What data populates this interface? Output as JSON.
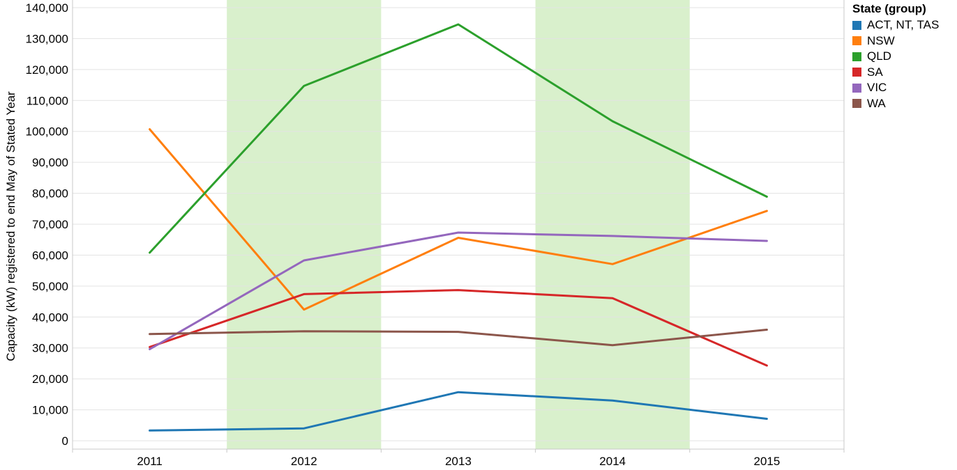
{
  "chart_data": {
    "type": "line",
    "title": "",
    "xlabel": "",
    "ylabel": "Capacity (kW) registered to end May of Stated Year",
    "categories": [
      "2011",
      "2012",
      "2013",
      "2014",
      "2015"
    ],
    "ylim": [
      0,
      140000
    ],
    "yticks": [
      0,
      10000,
      20000,
      30000,
      40000,
      50000,
      60000,
      70000,
      80000,
      90000,
      100000,
      110000,
      120000,
      130000,
      140000
    ],
    "ytick_labels": [
      "0",
      "10,000",
      "20,000",
      "30,000",
      "40,000",
      "50,000",
      "60,000",
      "70,000",
      "80,000",
      "90,000",
      "100,000",
      "110,000",
      "120,000",
      "130,000",
      "140,000"
    ],
    "grid": true,
    "shaded_bands": [
      "2012",
      "2014"
    ],
    "band_color": "#d9f0cc",
    "legend": {
      "title": "State (group)",
      "position": "top-right"
    },
    "series": [
      {
        "name": "ACT, NT, TAS",
        "color": "#1f77b4",
        "values": [
          3300,
          4000,
          15700,
          13000,
          7100
        ]
      },
      {
        "name": "NSW",
        "color": "#ff7f0e",
        "values": [
          100700,
          42400,
          65600,
          57100,
          74300
        ]
      },
      {
        "name": "QLD",
        "color": "#2ca02c",
        "values": [
          60800,
          114700,
          134600,
          103300,
          78900
        ]
      },
      {
        "name": "SA",
        "color": "#d62728",
        "values": [
          30300,
          47400,
          48700,
          46100,
          24300
        ]
      },
      {
        "name": "VIC",
        "color": "#9467bd",
        "values": [
          29600,
          58300,
          67300,
          66200,
          64600
        ]
      },
      {
        "name": "WA",
        "color": "#8c564b",
        "values": [
          34500,
          35400,
          35200,
          30900,
          35900
        ]
      }
    ]
  }
}
